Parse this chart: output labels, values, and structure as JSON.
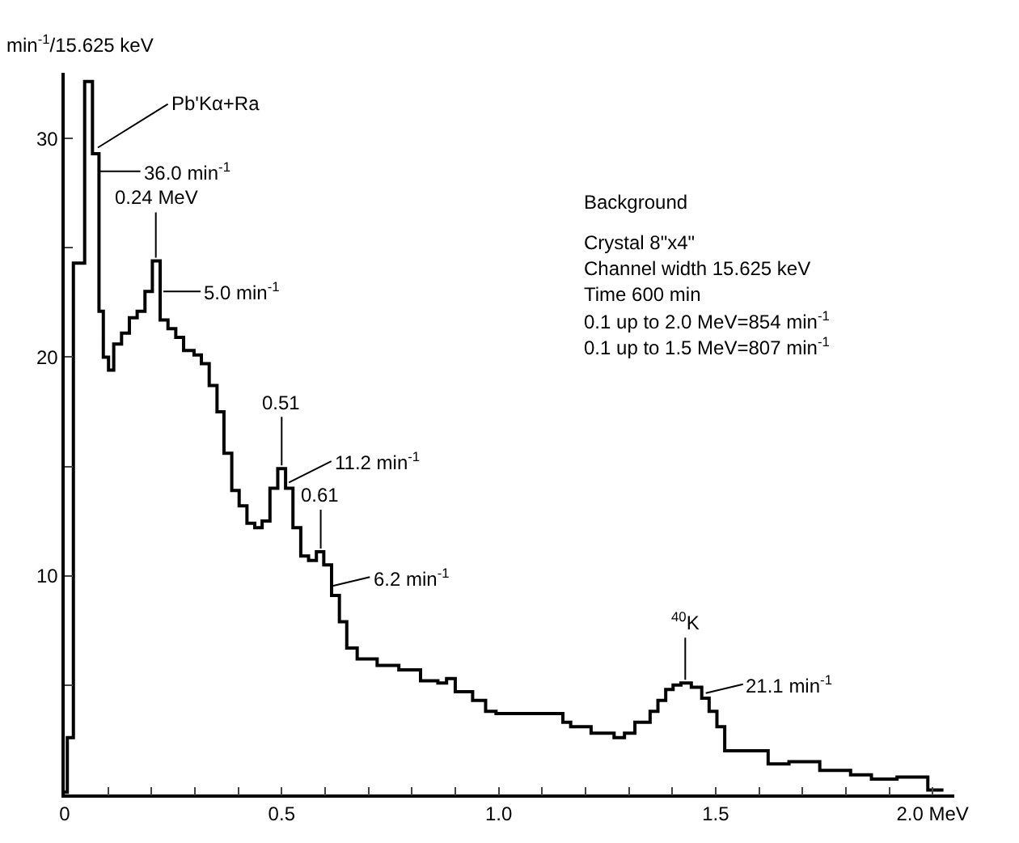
{
  "chart_data": {
    "type": "step",
    "ylabel": "min$^{-1}$/15.625 keV",
    "x": [
      0,
      0.006,
      0.02,
      0.046,
      0.064,
      0.079,
      0.089,
      0.101,
      0.113,
      0.131,
      0.149,
      0.167,
      0.185,
      0.202,
      0.22,
      0.238,
      0.256,
      0.274,
      0.298,
      0.315,
      0.333,
      0.351,
      0.367,
      0.385,
      0.402,
      0.42,
      0.438,
      0.455,
      0.473,
      0.491,
      0.509,
      0.526,
      0.544,
      0.562,
      0.58,
      0.597,
      0.615,
      0.633,
      0.65,
      0.674,
      0.72,
      0.77,
      0.82,
      0.86,
      0.88,
      0.9,
      0.94,
      0.97,
      0.994,
      1.148,
      1.166,
      1.213,
      1.266,
      1.29,
      1.314,
      1.349,
      1.367,
      1.385,
      1.402,
      1.42,
      1.444,
      1.468,
      1.485,
      1.503,
      1.521,
      1.621,
      1.669,
      1.74,
      1.811,
      1.859,
      1.918,
      1.989,
      2.025
    ],
    "series": [
      {
        "color": "#000000",
        "values": [
          0.1,
          2.6,
          24.3,
          32.6,
          29.3,
          22.1,
          20.0,
          19.4,
          20.6,
          21.1,
          21.8,
          22.1,
          23.0,
          24.4,
          21.7,
          21.3,
          20.9,
          20.3,
          20.1,
          19.7,
          18.7,
          17.5,
          15.6,
          13.9,
          13.2,
          12.4,
          12.2,
          12.5,
          14.0,
          14.9,
          14.0,
          12.2,
          10.9,
          10.7,
          11.1,
          10.5,
          9.1,
          7.9,
          6.7,
          6.2,
          5.9,
          5.7,
          5.2,
          5.1,
          5.3,
          4.7,
          4.3,
          3.8,
          3.7,
          3.3,
          3.1,
          2.8,
          2.6,
          2.8,
          3.3,
          3.8,
          4.3,
          4.8,
          5.0,
          5.1,
          4.9,
          4.4,
          3.8,
          3.1,
          2.0,
          1.4,
          1.5,
          1.1,
          0.9,
          0.7,
          0.8,
          0.2,
          0.2
        ]
      }
    ],
    "xlim": [
      0,
      2.05
    ],
    "ylim": [
      0,
      33
    ],
    "xticks": [
      {
        "value": 0,
        "label": "0"
      },
      {
        "value": 0.1,
        "label": null
      },
      {
        "value": 0.2,
        "label": null
      },
      {
        "value": 0.3,
        "label": null
      },
      {
        "value": 0.4,
        "label": null
      },
      0.5,
      {
        "value": 0.6,
        "label": null
      },
      {
        "value": 0.7,
        "label": null
      },
      {
        "value": 0.8,
        "label": null
      },
      {
        "value": 0.9,
        "label": null
      },
      {
        "value": 1,
        "label": "1.0"
      },
      {
        "value": 1.1,
        "label": null
      },
      {
        "value": 1.2,
        "label": null
      },
      {
        "value": 1.3,
        "label": null
      },
      {
        "value": 1.4,
        "label": null
      },
      1.5,
      {
        "value": 1.6,
        "label": null
      },
      {
        "value": 1.7,
        "label": null
      },
      {
        "value": 1.8,
        "label": null
      },
      {
        "value": 1.9,
        "label": null
      },
      {
        "value": 2,
        "label": "2.0 MeV"
      }
    ],
    "yticks": [
      {
        "value": 5,
        "label": null
      },
      10,
      {
        "value": 15,
        "label": null
      },
      20,
      {
        "value": 25,
        "label": null
      },
      30
    ],
    "grid": false,
    "marker": "none",
    "line_style": "solid",
    "annotations": [
      {
        "text": "Pb'Kα+Ra",
        "x": 0.07,
        "y": 29.5
      },
      {
        "text": "36.0 min$^{-1}$",
        "x": 0.07,
        "y": 28.5
      },
      {
        "text": "0.24 MeV",
        "x": 0.21,
        "y": 24.4
      },
      {
        "text": "5.0 min$^{-1}$",
        "x": 0.22,
        "y": 23.0
      },
      {
        "text": "0.51",
        "x": 0.5,
        "y": 14.9
      },
      {
        "text": "11.2 min$^{-1}$",
        "x": 0.51,
        "y": 14.2
      },
      {
        "text": "0.61",
        "x": 0.59,
        "y": 11.1
      },
      {
        "text": "6.2 min$^{-1}$",
        "x": 0.61,
        "y": 9.5
      },
      {
        "text": "$^{40}$K",
        "x": 1.43,
        "y": 5.1
      },
      {
        "text": "21.1 min$^{-1}$",
        "x": 1.47,
        "y": 4.6
      },
      "Background",
      "Crystal 8\"x4\"",
      "Channel width 15.625 keV",
      "Time 600 min",
      "0.1 up to 2.0 MeV=854 min$^{-1}$",
      "0.1 up to 1.5 MeV=807 min$^{-1}$"
    ]
  }
}
